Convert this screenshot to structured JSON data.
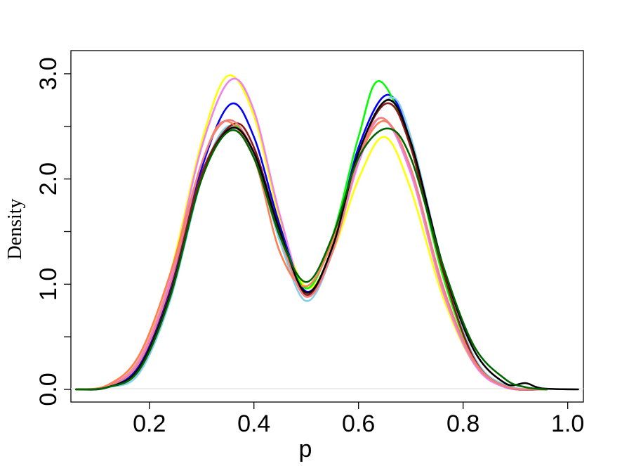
{
  "chart_data": {
    "type": "line",
    "title": "",
    "xlabel": "p",
    "ylabel": "Density",
    "xlim": [
      0.05,
      1.03
    ],
    "ylim": [
      -0.12,
      3.22
    ],
    "x_ticks": [
      "0.2",
      "0.4",
      "0.6",
      "0.8",
      "1.0"
    ],
    "y_ticks": [
      "0.0",
      "1.0",
      "2.0",
      "3.0"
    ],
    "y_minor_ticks": [
      0.5,
      1.5,
      2.5
    ],
    "legend": "none",
    "grid": false,
    "series": [
      {
        "color": "#ffff00",
        "points": [
          [
            0.06,
            0
          ],
          [
            0.12,
            0.04
          ],
          [
            0.18,
            0.3
          ],
          [
            0.24,
            1.1
          ],
          [
            0.3,
            2.35
          ],
          [
            0.35,
            2.98
          ],
          [
            0.4,
            2.6
          ],
          [
            0.45,
            1.6
          ],
          [
            0.5,
            0.97
          ],
          [
            0.55,
            1.3
          ],
          [
            0.6,
            2.0
          ],
          [
            0.65,
            2.4
          ],
          [
            0.7,
            1.9
          ],
          [
            0.76,
            0.9
          ],
          [
            0.82,
            0.25
          ],
          [
            0.88,
            0.03
          ],
          [
            0.96,
            0
          ]
        ]
      },
      {
        "color": "#ee82ee",
        "points": [
          [
            0.06,
            0
          ],
          [
            0.12,
            0.03
          ],
          [
            0.18,
            0.28
          ],
          [
            0.24,
            1.05
          ],
          [
            0.3,
            2.3
          ],
          [
            0.355,
            2.94
          ],
          [
            0.4,
            2.65
          ],
          [
            0.45,
            1.65
          ],
          [
            0.5,
            0.9
          ],
          [
            0.55,
            1.3
          ],
          [
            0.6,
            2.15
          ],
          [
            0.645,
            2.58
          ],
          [
            0.7,
            2.05
          ],
          [
            0.76,
            0.95
          ],
          [
            0.82,
            0.25
          ],
          [
            0.88,
            0.02
          ],
          [
            0.96,
            0
          ]
        ]
      },
      {
        "color": "#0000ff",
        "points": [
          [
            0.06,
            0
          ],
          [
            0.12,
            0.02
          ],
          [
            0.18,
            0.22
          ],
          [
            0.24,
            0.95
          ],
          [
            0.3,
            2.1
          ],
          [
            0.355,
            2.71
          ],
          [
            0.4,
            2.4
          ],
          [
            0.45,
            1.55
          ],
          [
            0.5,
            0.93
          ],
          [
            0.55,
            1.35
          ],
          [
            0.6,
            2.3
          ],
          [
            0.655,
            2.8
          ],
          [
            0.7,
            2.35
          ],
          [
            0.76,
            1.15
          ],
          [
            0.82,
            0.3
          ],
          [
            0.88,
            0.03
          ],
          [
            0.96,
            0
          ]
        ]
      },
      {
        "color": "#00ff00",
        "points": [
          [
            0.06,
            0
          ],
          [
            0.12,
            0.02
          ],
          [
            0.18,
            0.2
          ],
          [
            0.24,
            0.9
          ],
          [
            0.3,
            2.0
          ],
          [
            0.355,
            2.5
          ],
          [
            0.4,
            2.25
          ],
          [
            0.45,
            1.5
          ],
          [
            0.5,
            0.96
          ],
          [
            0.55,
            1.45
          ],
          [
            0.6,
            2.4
          ],
          [
            0.64,
            2.93
          ],
          [
            0.7,
            2.3
          ],
          [
            0.76,
            1.1
          ],
          [
            0.82,
            0.3
          ],
          [
            0.88,
            0.03
          ],
          [
            0.96,
            0
          ]
        ]
      },
      {
        "color": "#87ceeb",
        "points": [
          [
            0.06,
            0
          ],
          [
            0.12,
            0.02
          ],
          [
            0.18,
            0.15
          ],
          [
            0.24,
            0.85
          ],
          [
            0.3,
            2.0
          ],
          [
            0.35,
            2.5
          ],
          [
            0.4,
            2.22
          ],
          [
            0.45,
            1.4
          ],
          [
            0.5,
            0.84
          ],
          [
            0.55,
            1.3
          ],
          [
            0.6,
            2.25
          ],
          [
            0.66,
            2.77
          ],
          [
            0.7,
            2.4
          ],
          [
            0.76,
            1.2
          ],
          [
            0.82,
            0.32
          ],
          [
            0.88,
            0.04
          ],
          [
            0.96,
            0
          ]
        ]
      },
      {
        "color": "#8b1a1a",
        "points": [
          [
            0.06,
            0
          ],
          [
            0.12,
            0.02
          ],
          [
            0.18,
            0.2
          ],
          [
            0.24,
            0.92
          ],
          [
            0.3,
            2.05
          ],
          [
            0.36,
            2.52
          ],
          [
            0.4,
            2.3
          ],
          [
            0.45,
            1.5
          ],
          [
            0.5,
            0.9
          ],
          [
            0.55,
            1.35
          ],
          [
            0.6,
            2.25
          ],
          [
            0.655,
            2.72
          ],
          [
            0.7,
            2.3
          ],
          [
            0.76,
            1.15
          ],
          [
            0.82,
            0.3
          ],
          [
            0.88,
            0.03
          ],
          [
            0.96,
            0
          ]
        ]
      },
      {
        "color": "#ff7f50",
        "points": [
          [
            0.06,
            0
          ],
          [
            0.12,
            0.04
          ],
          [
            0.18,
            0.32
          ],
          [
            0.24,
            1.1
          ],
          [
            0.3,
            2.15
          ],
          [
            0.345,
            2.55
          ],
          [
            0.4,
            2.2
          ],
          [
            0.45,
            1.3
          ],
          [
            0.5,
            0.98
          ],
          [
            0.55,
            1.4
          ],
          [
            0.6,
            2.2
          ],
          [
            0.65,
            2.55
          ],
          [
            0.7,
            2.1
          ],
          [
            0.76,
            1.0
          ],
          [
            0.82,
            0.28
          ],
          [
            0.88,
            0.03
          ],
          [
            0.96,
            0
          ]
        ]
      },
      {
        "color": "#f08080",
        "points": [
          [
            0.06,
            0
          ],
          [
            0.12,
            0.03
          ],
          [
            0.18,
            0.25
          ],
          [
            0.24,
            1.0
          ],
          [
            0.3,
            2.15
          ],
          [
            0.35,
            2.56
          ],
          [
            0.4,
            2.25
          ],
          [
            0.45,
            1.45
          ],
          [
            0.5,
            0.88
          ],
          [
            0.55,
            1.3
          ],
          [
            0.6,
            2.2
          ],
          [
            0.645,
            2.58
          ],
          [
            0.7,
            2.1
          ],
          [
            0.76,
            1.0
          ],
          [
            0.82,
            0.27
          ],
          [
            0.88,
            0.03
          ],
          [
            0.96,
            0
          ]
        ]
      },
      {
        "color": "#000000",
        "points": [
          [
            0.06,
            0
          ],
          [
            0.12,
            0.02
          ],
          [
            0.18,
            0.2
          ],
          [
            0.24,
            0.9
          ],
          [
            0.3,
            2.0
          ],
          [
            0.355,
            2.48
          ],
          [
            0.4,
            2.25
          ],
          [
            0.45,
            1.5
          ],
          [
            0.5,
            0.92
          ],
          [
            0.55,
            1.35
          ],
          [
            0.6,
            2.25
          ],
          [
            0.655,
            2.75
          ],
          [
            0.7,
            2.35
          ],
          [
            0.76,
            1.2
          ],
          [
            0.82,
            0.38
          ],
          [
            0.88,
            0.06
          ],
          [
            0.92,
            0.06
          ],
          [
            0.95,
            0.01
          ],
          [
            1.02,
            0
          ]
        ]
      },
      {
        "color": "#006400",
        "points": [
          [
            0.06,
            0
          ],
          [
            0.12,
            0.02
          ],
          [
            0.18,
            0.18
          ],
          [
            0.24,
            0.88
          ],
          [
            0.3,
            2.0
          ],
          [
            0.355,
            2.46
          ],
          [
            0.4,
            2.2
          ],
          [
            0.45,
            1.45
          ],
          [
            0.5,
            1.02
          ],
          [
            0.55,
            1.45
          ],
          [
            0.6,
            2.2
          ],
          [
            0.655,
            2.48
          ],
          [
            0.7,
            2.2
          ],
          [
            0.76,
            1.2
          ],
          [
            0.82,
            0.42
          ],
          [
            0.88,
            0.1
          ],
          [
            0.92,
            0.02
          ],
          [
            0.96,
            0
          ]
        ]
      }
    ]
  }
}
